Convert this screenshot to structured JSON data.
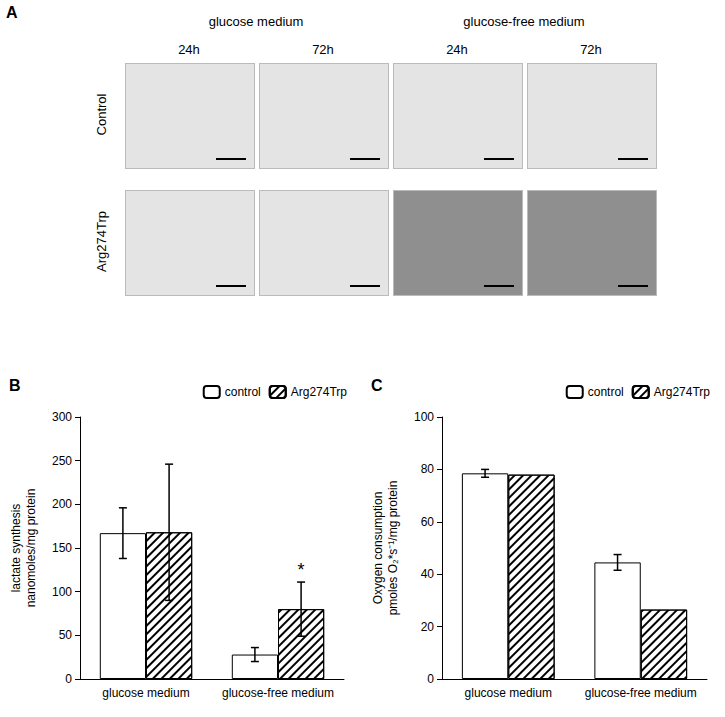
{
  "panel_a": {
    "label": "A",
    "column_groups": [
      "glucose medium",
      "glucose-free medium"
    ],
    "time_points": [
      "24h",
      "72h"
    ],
    "rows": [
      "Control",
      "Arg274Trp"
    ]
  },
  "chart_data": [
    {
      "type": "bar",
      "title": "B",
      "ylabel": "lactate synthesis\nnanomoles/mg protein",
      "categories": [
        "glucose medium",
        "glucose-free medium"
      ],
      "series": [
        {
          "name": "control",
          "color": "#ffffff",
          "values": [
            167,
            28
          ],
          "errors": [
            29,
            8
          ]
        },
        {
          "name": "Arg274Trp",
          "color": "#ffffff",
          "values": [
            168,
            80
          ],
          "errors": [
            78,
            31
          ]
        }
      ],
      "annotations": [
        {
          "text": "*",
          "category": "glucose-free medium",
          "series": "Arg274Trp"
        }
      ],
      "ylim": [
        0,
        300
      ],
      "yticks": [
        0,
        50,
        100,
        150,
        200,
        250,
        300
      ],
      "grid": false,
      "legend": "upper right"
    },
    {
      "type": "bar",
      "title": "C",
      "ylabel": "Oxygen consumption\npmoles O₂*s⁻¹/mg protein",
      "categories": [
        "glucose medium",
        "glucose-free medium"
      ],
      "series": [
        {
          "name": "control",
          "color": "#ffffff",
          "values": [
            78.5,
            44.5
          ],
          "errors": [
            1.5,
            3
          ]
        },
        {
          "name": "Arg274Trp",
          "color": "#ffffff",
          "values": [
            78,
            26.5
          ],
          "errors": [
            null,
            null
          ]
        }
      ],
      "ylim": [
        0,
        100
      ],
      "yticks": [
        0,
        20,
        40,
        60,
        80,
        100
      ],
      "grid": false,
      "legend": "upper right"
    }
  ]
}
